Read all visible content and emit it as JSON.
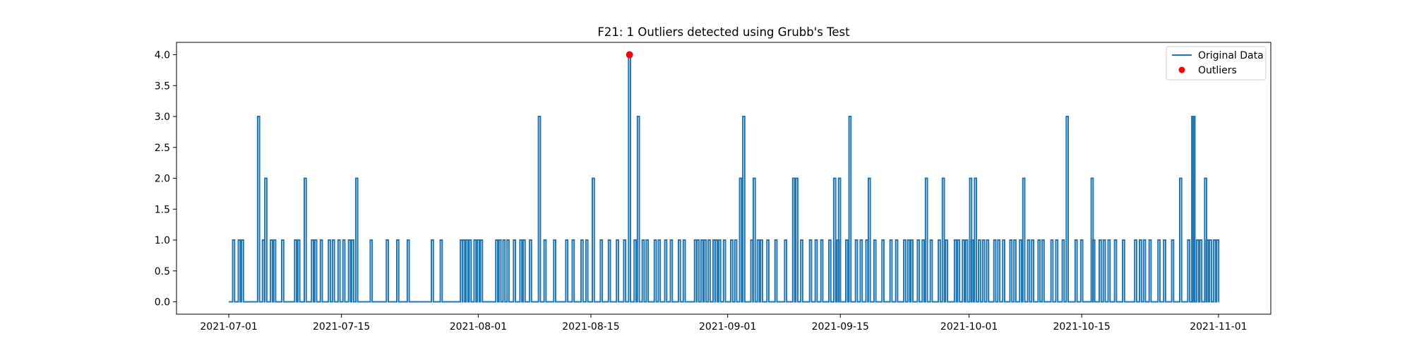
{
  "chart_data": {
    "type": "line",
    "title": "F21: 1 Outliers detected using Grubb's Test",
    "xlabel": "",
    "ylabel": "",
    "x_start": "2021-07-01",
    "x_end": "2021-11-01",
    "xlim_days": [
      -6.5,
      129.5
    ],
    "ylim": [
      -0.2,
      4.2
    ],
    "y_ticks": [
      0.0,
      0.5,
      1.0,
      1.5,
      2.0,
      2.5,
      3.0,
      3.5,
      4.0
    ],
    "y_tick_labels": [
      "0.0",
      "0.5",
      "1.0",
      "1.5",
      "2.0",
      "2.5",
      "3.0",
      "3.5",
      "4.0"
    ],
    "x_ticks_days": [
      0,
      14,
      31,
      45,
      62,
      76,
      92,
      106,
      123
    ],
    "x_tick_labels": [
      "2021-07-01",
      "2021-07-15",
      "2021-08-01",
      "2021-08-15",
      "2021-09-01",
      "2021-09-15",
      "2021-10-01",
      "2021-10-15",
      "2021-11-01"
    ],
    "series": [
      {
        "name": "Original Data",
        "color": "#1f77b4",
        "baseline": 0,
        "spikes": [
          [
            0.6,
            1
          ],
          [
            1.3,
            1
          ],
          [
            1.7,
            1
          ],
          [
            3.7,
            3
          ],
          [
            4.3,
            1
          ],
          [
            4.6,
            2
          ],
          [
            5.3,
            1
          ],
          [
            5.7,
            1
          ],
          [
            6.7,
            1
          ],
          [
            8.3,
            1
          ],
          [
            8.7,
            1
          ],
          [
            9.5,
            2
          ],
          [
            10.4,
            1
          ],
          [
            10.8,
            1
          ],
          [
            11.5,
            1
          ],
          [
            12.5,
            1
          ],
          [
            13.0,
            1
          ],
          [
            13.7,
            1
          ],
          [
            14.3,
            1
          ],
          [
            15.0,
            1
          ],
          [
            15.4,
            1
          ],
          [
            15.9,
            2
          ],
          [
            17.7,
            1
          ],
          [
            19.7,
            1
          ],
          [
            21.0,
            1
          ],
          [
            22.3,
            1
          ],
          [
            25.3,
            1
          ],
          [
            26.4,
            1
          ],
          [
            28.9,
            1
          ],
          [
            29.2,
            1
          ],
          [
            29.6,
            1
          ],
          [
            30.0,
            1
          ],
          [
            30.6,
            1
          ],
          [
            31.0,
            1
          ],
          [
            31.4,
            1
          ],
          [
            33.3,
            1
          ],
          [
            33.7,
            1
          ],
          [
            34.2,
            1
          ],
          [
            34.7,
            1
          ],
          [
            35.5,
            1
          ],
          [
            36.3,
            1
          ],
          [
            36.7,
            1
          ],
          [
            37.5,
            1
          ],
          [
            38.6,
            3
          ],
          [
            39.3,
            1
          ],
          [
            40.5,
            1
          ],
          [
            42.0,
            1
          ],
          [
            42.8,
            1
          ],
          [
            43.9,
            1
          ],
          [
            44.5,
            1
          ],
          [
            45.3,
            2
          ],
          [
            46.3,
            1
          ],
          [
            47.3,
            1
          ],
          [
            48.3,
            1
          ],
          [
            49.2,
            1
          ],
          [
            49.8,
            4
          ],
          [
            50.5,
            1
          ],
          [
            50.9,
            3
          ],
          [
            51.5,
            1
          ],
          [
            52.0,
            1
          ],
          [
            53.0,
            1
          ],
          [
            53.5,
            1
          ],
          [
            54.3,
            1
          ],
          [
            55.0,
            1
          ],
          [
            56.0,
            1
          ],
          [
            56.6,
            1
          ],
          [
            58.0,
            1
          ],
          [
            58.3,
            1
          ],
          [
            58.8,
            1
          ],
          [
            59.2,
            1
          ],
          [
            59.7,
            1
          ],
          [
            60.3,
            1
          ],
          [
            60.6,
            1
          ],
          [
            61.0,
            1
          ],
          [
            61.6,
            1
          ],
          [
            62.5,
            1
          ],
          [
            63.0,
            1
          ],
          [
            63.6,
            2
          ],
          [
            64.0,
            3
          ],
          [
            65.0,
            1
          ],
          [
            65.3,
            2
          ],
          [
            65.8,
            1
          ],
          [
            66.2,
            1
          ],
          [
            67.0,
            1
          ],
          [
            68.0,
            1
          ],
          [
            69.2,
            1
          ],
          [
            70.2,
            2
          ],
          [
            70.6,
            2
          ],
          [
            71.2,
            1
          ],
          [
            72.3,
            1
          ],
          [
            73.0,
            1
          ],
          [
            73.7,
            1
          ],
          [
            74.7,
            1
          ],
          [
            75.3,
            2
          ],
          [
            75.7,
            1
          ],
          [
            75.9,
            2
          ],
          [
            76.8,
            1
          ],
          [
            77.2,
            3
          ],
          [
            78.0,
            1
          ],
          [
            78.6,
            1
          ],
          [
            79.3,
            1
          ],
          [
            79.6,
            2
          ],
          [
            80.3,
            1
          ],
          [
            81.3,
            1
          ],
          [
            82.3,
            1
          ],
          [
            83.0,
            1
          ],
          [
            84.0,
            1
          ],
          [
            84.5,
            1
          ],
          [
            84.9,
            1
          ],
          [
            85.7,
            1
          ],
          [
            86.3,
            1
          ],
          [
            86.7,
            2
          ],
          [
            87.3,
            1
          ],
          [
            88.3,
            1
          ],
          [
            88.8,
            2
          ],
          [
            89.2,
            1
          ],
          [
            90.3,
            1
          ],
          [
            90.7,
            1
          ],
          [
            91.3,
            1
          ],
          [
            91.7,
            1
          ],
          [
            92.2,
            2
          ],
          [
            92.4,
            1
          ],
          [
            92.8,
            2
          ],
          [
            93.3,
            1
          ],
          [
            93.8,
            1
          ],
          [
            94.3,
            1
          ],
          [
            95.2,
            1
          ],
          [
            95.7,
            1
          ],
          [
            96.3,
            1
          ],
          [
            97.2,
            1
          ],
          [
            97.7,
            1
          ],
          [
            98.4,
            1
          ],
          [
            98.8,
            2
          ],
          [
            99.4,
            1
          ],
          [
            99.9,
            1
          ],
          [
            100.7,
            1
          ],
          [
            101.2,
            1
          ],
          [
            102.3,
            1
          ],
          [
            102.9,
            1
          ],
          [
            103.7,
            1
          ],
          [
            104.2,
            3
          ],
          [
            105.3,
            1
          ],
          [
            106.0,
            1
          ],
          [
            107.3,
            2
          ],
          [
            107.5,
            1
          ],
          [
            108.3,
            1
          ],
          [
            108.8,
            1
          ],
          [
            109.4,
            1
          ],
          [
            110.2,
            1
          ],
          [
            111.2,
            1
          ],
          [
            112.7,
            1
          ],
          [
            113.3,
            1
          ],
          [
            113.8,
            1
          ],
          [
            114.5,
            1
          ],
          [
            115.6,
            1
          ],
          [
            116.3,
            1
          ],
          [
            117.3,
            1
          ],
          [
            118.3,
            2
          ],
          [
            119.3,
            1
          ],
          [
            119.8,
            3
          ],
          [
            119.95,
            3
          ],
          [
            120.4,
            1
          ],
          [
            120.8,
            1
          ],
          [
            121.4,
            2
          ],
          [
            121.6,
            1
          ],
          [
            122.0,
            1
          ],
          [
            122.5,
            1
          ],
          [
            122.9,
            1
          ]
        ]
      },
      {
        "name": "Outliers",
        "color": "#ff0000",
        "points": [
          [
            49.8,
            4.0
          ]
        ]
      }
    ],
    "legend": {
      "position": "top-right",
      "entries": [
        "Original Data",
        "Outliers"
      ]
    }
  }
}
